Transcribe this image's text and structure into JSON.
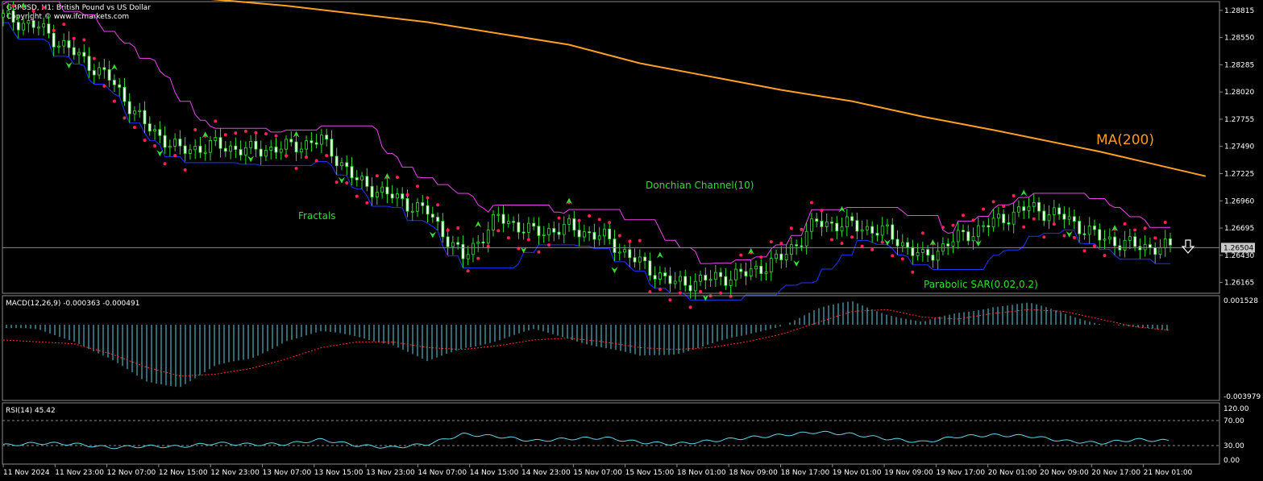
{
  "chart_data": [
    {
      "type": "candlestick",
      "title": "GBPUSD, H1: British Pound vs US Dollar",
      "subtitle": "Copyright © www.ifcmarkets.com",
      "y_ticks": [
        "1.28815",
        "1.28550",
        "1.28285",
        "1.28020",
        "1.27755",
        "1.27490",
        "1.27225",
        "1.26960",
        "1.26695",
        "1.26430",
        "1.26165"
      ],
      "ylim": [
        1.2606,
        1.289
      ],
      "current_price": "1.26504",
      "x_tick_labels": [
        "11 Nov 2024",
        "11 Nov 23:00",
        "12 Nov 07:00",
        "12 Nov 15:00",
        "12 Nov 23:00",
        "13 Nov 07:00",
        "13 Nov 15:00",
        "13 Nov 23:00",
        "14 Nov 07:00",
        "14 Nov 15:00",
        "14 Nov 23:00",
        "15 Nov 07:00",
        "15 Nov 15:00",
        "18 Nov 01:00",
        "18 Nov 09:00",
        "18 Nov 17:00",
        "19 Nov 01:00",
        "19 Nov 09:00",
        "19 Nov 17:00",
        "20 Nov 01:00",
        "20 Nov 09:00",
        "20 Nov 17:00",
        "21 Nov 01:00"
      ],
      "annotations": {
        "ma": "MA(200)",
        "donchian": "Donchian Channel(10)",
        "fractals": "Fractals",
        "sar": "Parabolic SAR(0.02,0.2)"
      },
      "ma200": [
        [
          0,
          1.2905
        ],
        [
          4,
          1.2898
        ],
        [
          8,
          1.2886
        ],
        [
          12,
          1.287
        ],
        [
          16,
          1.2848
        ],
        [
          18,
          1.283
        ],
        [
          20,
          1.2817
        ],
        [
          22,
          1.2804
        ],
        [
          24,
          1.2793
        ],
        [
          26,
          1.2778
        ],
        [
          28,
          1.2765
        ],
        [
          30,
          1.2751
        ],
        [
          31,
          1.2744
        ],
        [
          32,
          1.2736
        ],
        [
          34,
          1.272
        ]
      ],
      "price_anchors": [
        [
          0,
          1.2875
        ],
        [
          1,
          1.2865
        ],
        [
          2,
          1.284
        ],
        [
          3,
          1.2815
        ],
        [
          4,
          1.277
        ],
        [
          5,
          1.2745
        ],
        [
          6,
          1.275
        ],
        [
          7,
          1.2745
        ],
        [
          8,
          1.2748
        ],
        [
          9,
          1.2755
        ],
        [
          10,
          1.2715
        ],
        [
          11,
          1.27
        ],
        [
          12,
          1.2685
        ],
        [
          13,
          1.264
        ],
        [
          14,
          1.268
        ],
        [
          15,
          1.2665
        ],
        [
          16,
          1.267
        ],
        [
          17,
          1.266
        ],
        [
          18,
          1.2635
        ],
        [
          19,
          1.2615
        ],
        [
          20,
          1.262
        ],
        [
          21,
          1.2625
        ],
        [
          22,
          1.264
        ],
        [
          23,
          1.2675
        ],
        [
          24,
          1.2672
        ],
        [
          25,
          1.2665
        ],
        [
          26,
          1.264
        ],
        [
          27,
          1.266
        ],
        [
          28,
          1.2675
        ],
        [
          29,
          1.269
        ],
        [
          30,
          1.268
        ],
        [
          31,
          1.266
        ],
        [
          32,
          1.2652
        ],
        [
          33,
          1.265
        ]
      ]
    },
    {
      "type": "macd",
      "label": "MACD(12,26,9) -0.000363 -0.000491",
      "y_ticks": [
        "0.001528",
        "-0.003979"
      ],
      "ylim": [
        -0.003979,
        0.001528
      ],
      "macd": [
        [
          0,
          -0.0002
        ],
        [
          1,
          -0.0003
        ],
        [
          2,
          -0.0008
        ],
        [
          3,
          -0.0018
        ],
        [
          4,
          -0.003
        ],
        [
          5,
          -0.0032
        ],
        [
          6,
          -0.0022
        ],
        [
          7,
          -0.0018
        ],
        [
          8,
          -0.0008
        ],
        [
          9,
          -0.0004
        ],
        [
          10,
          -0.0006
        ],
        [
          11,
          -0.001
        ],
        [
          12,
          -0.002
        ],
        [
          13,
          -0.0012
        ],
        [
          14,
          -0.0008
        ],
        [
          15,
          -0.0003
        ],
        [
          16,
          -0.0007
        ],
        [
          17,
          -0.0012
        ],
        [
          18,
          -0.0017
        ],
        [
          19,
          -0.0015
        ],
        [
          20,
          -0.001
        ],
        [
          21,
          -0.0006
        ],
        [
          22,
          0.0
        ],
        [
          23,
          0.0008
        ],
        [
          24,
          0.0012
        ],
        [
          25,
          0.0006
        ],
        [
          26,
          0.0001
        ],
        [
          27,
          0.0006
        ],
        [
          28,
          0.001
        ],
        [
          29,
          0.0011
        ],
        [
          30,
          0.0006
        ],
        [
          31,
          0.0001
        ],
        [
          32,
          -0.0002
        ],
        [
          33,
          -0.0003
        ]
      ],
      "signal": [
        [
          0,
          -0.0008
        ],
        [
          2,
          -0.001
        ],
        [
          3,
          -0.0015
        ],
        [
          4,
          -0.0022
        ],
        [
          5,
          -0.0027
        ],
        [
          6,
          -0.0026
        ],
        [
          7,
          -0.0023
        ],
        [
          8,
          -0.0018
        ],
        [
          9,
          -0.0012
        ],
        [
          10,
          -0.0009
        ],
        [
          11,
          -0.0009
        ],
        [
          12,
          -0.0012
        ],
        [
          13,
          -0.0013
        ],
        [
          14,
          -0.0011
        ],
        [
          15,
          -0.0008
        ],
        [
          16,
          -0.0007
        ],
        [
          17,
          -0.0009
        ],
        [
          18,
          -0.0012
        ],
        [
          19,
          -0.0013
        ],
        [
          20,
          -0.0012
        ],
        [
          21,
          -0.0009
        ],
        [
          22,
          -0.0005
        ],
        [
          23,
          0.0001
        ],
        [
          24,
          0.0007
        ],
        [
          25,
          0.0008
        ],
        [
          26,
          0.0004
        ],
        [
          27,
          0.0003
        ],
        [
          28,
          0.0006
        ],
        [
          29,
          0.0008
        ],
        [
          30,
          0.0007
        ],
        [
          31,
          0.0003
        ],
        [
          32,
          -0.0001
        ],
        [
          33,
          -0.0003
        ]
      ]
    },
    {
      "type": "line",
      "label": "RSI(14) 45.42",
      "y_ticks": [
        "120.00",
        "70.00",
        "30.00",
        "0.00"
      ],
      "ylim": [
        0,
        120
      ],
      "levels": [
        70,
        30
      ],
      "rsi": [
        [
          0,
          35
        ],
        [
          1,
          40
        ],
        [
          2,
          38
        ],
        [
          3,
          30
        ],
        [
          4,
          33
        ],
        [
          5,
          32
        ],
        [
          6,
          40
        ],
        [
          7,
          37
        ],
        [
          8,
          38
        ],
        [
          9,
          48
        ],
        [
          10,
          35
        ],
        [
          11,
          30
        ],
        [
          12,
          38
        ],
        [
          13,
          60
        ],
        [
          14,
          55
        ],
        [
          15,
          45
        ],
        [
          16,
          50
        ],
        [
          17,
          52
        ],
        [
          18,
          42
        ],
        [
          19,
          38
        ],
        [
          20,
          45
        ],
        [
          21,
          52
        ],
        [
          22,
          58
        ],
        [
          23,
          65
        ],
        [
          24,
          60
        ],
        [
          25,
          50
        ],
        [
          26,
          42
        ],
        [
          27,
          55
        ],
        [
          28,
          58
        ],
        [
          29,
          56
        ],
        [
          30,
          45
        ],
        [
          31,
          40
        ],
        [
          32,
          48
        ],
        [
          33,
          45
        ]
      ]
    }
  ]
}
